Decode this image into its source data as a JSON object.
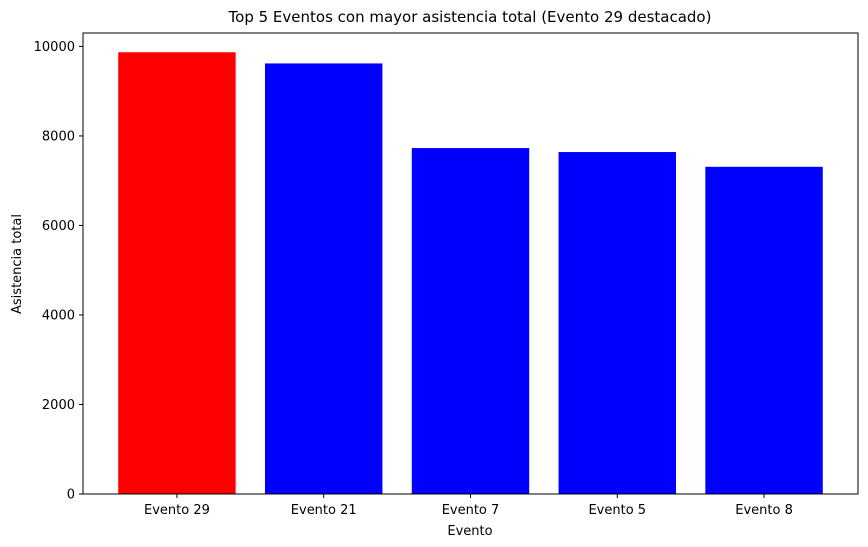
{
  "chart_data": {
    "type": "bar",
    "title": "Top 5 Eventos con mayor asistencia total (Evento 29 destacado)",
    "xlabel": "Evento",
    "ylabel": "Asistencia total",
    "categories": [
      "Evento 29",
      "Evento 21",
      "Evento 7",
      "Evento 5",
      "Evento 8"
    ],
    "values": [
      9870,
      9620,
      7730,
      7640,
      7310
    ],
    "bar_colors": [
      "#ff0000",
      "#0000ff",
      "#0000ff",
      "#0000ff",
      "#0000ff"
    ],
    "highlight": "Evento 29",
    "ylim": [
      0,
      10300
    ],
    "yticks": [
      0,
      2000,
      4000,
      6000,
      8000,
      10000
    ],
    "grid": false,
    "legend": "none"
  }
}
